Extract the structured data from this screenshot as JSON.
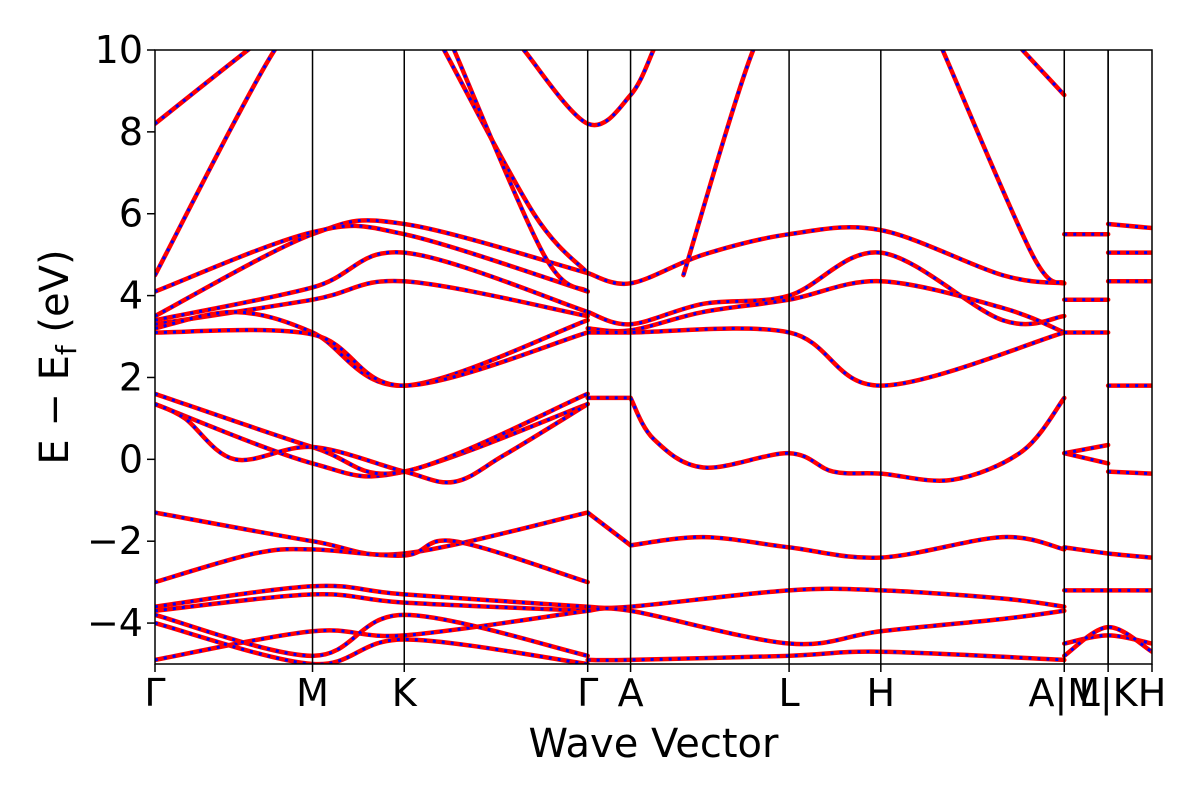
{
  "chart_data": {
    "type": "line",
    "xlabel": "Wave Vector",
    "ylabel_parts": [
      "E − E",
      "f",
      " (eV)"
    ],
    "ylim": [
      -5,
      10
    ],
    "yticks": [
      -4,
      -2,
      0,
      2,
      4,
      6,
      8,
      10
    ],
    "ytick_labels": [
      "−4",
      "−2",
      "0",
      "2",
      "4",
      "6",
      "8",
      "10"
    ],
    "kpath_labels": [
      "Γ",
      "M",
      "K",
      "Γ",
      "A",
      "L",
      "H",
      "A",
      "M",
      "L",
      "K",
      "H"
    ],
    "kpath_x": [
      0,
      0.158,
      0.25,
      0.434,
      0.477,
      0.636,
      0.728,
      0.912,
      0.912,
      0.956,
      0.956,
      1.0
    ],
    "kpath_tick_labels": [
      "Γ",
      "M",
      "K",
      "Γ",
      "A",
      "L",
      "H",
      "A|M",
      "L|K",
      "H"
    ],
    "kpath_tick_x": [
      0,
      0.158,
      0.25,
      0.434,
      0.477,
      0.636,
      0.728,
      0.912,
      0.956,
      1.0
    ],
    "colors": {
      "bands_primary": "#ff0000",
      "bands_overlay": "#0000ff",
      "axes": "#000000"
    },
    "series": [
      {
        "x": [
          0.0,
          0.158,
          0.25,
          0.434
        ],
        "y": [
          1.35,
          -0.1,
          -0.3,
          1.35
        ]
      },
      {
        "x": [
          0.0,
          0.158,
          0.25,
          0.434
        ],
        "y": [
          1.6,
          0.3,
          -0.3,
          1.6
        ]
      },
      {
        "x": [
          0.0,
          0.03,
          0.08,
          0.158,
          0.25,
          0.3,
          0.35,
          0.434
        ],
        "y": [
          1.35,
          1.0,
          0.0,
          0.3,
          -0.3,
          -0.55,
          0.1,
          1.35
        ]
      },
      {
        "x": [
          0.434,
          0.477
        ],
        "y": [
          1.5,
          1.5
        ]
      },
      {
        "x": [
          0.477,
          0.5,
          0.55,
          0.636,
          0.68,
          0.728,
          0.8,
          0.87,
          0.912
        ],
        "y": [
          1.5,
          0.5,
          -0.2,
          0.15,
          -0.3,
          -0.35,
          -0.5,
          0.2,
          1.5
        ]
      },
      {
        "x": [
          0.912,
          0.956
        ],
        "y": [
          0.15,
          -0.1
        ]
      },
      {
        "x": [
          0.912,
          0.956
        ],
        "y": [
          0.15,
          0.35
        ]
      },
      {
        "x": [
          0.956,
          1.0
        ],
        "y": [
          -0.3,
          -0.35
        ]
      },
      {
        "x": [
          0.0,
          0.158,
          0.25,
          0.434
        ],
        "y": [
          -1.3,
          -2.0,
          -2.3,
          -1.3
        ]
      },
      {
        "x": [
          0.0,
          0.1,
          0.158,
          0.25,
          0.3,
          0.434
        ],
        "y": [
          -3.0,
          -2.3,
          -2.2,
          -2.35,
          -2.0,
          -3.0
        ]
      },
      {
        "x": [
          0.434,
          0.477
        ],
        "y": [
          -1.3,
          -2.1
        ]
      },
      {
        "x": [
          0.477,
          0.55,
          0.636,
          0.728,
          0.85,
          0.912
        ],
        "y": [
          -2.1,
          -1.9,
          -2.15,
          -2.4,
          -1.9,
          -2.2
        ]
      },
      {
        "x": [
          0.912,
          0.956,
          1.0
        ],
        "y": [
          -2.15,
          -2.3,
          -2.4
        ]
      },
      {
        "x": [
          0.0,
          0.158,
          0.25,
          0.434
        ],
        "y": [
          3.5,
          5.5,
          5.75,
          4.55
        ]
      },
      {
        "x": [
          0.0,
          0.158,
          0.25,
          0.434
        ],
        "y": [
          4.1,
          5.55,
          5.5,
          4.1
        ]
      },
      {
        "x": [
          0.0,
          0.158,
          0.25,
          0.434
        ],
        "y": [
          3.4,
          4.2,
          5.05,
          3.6
        ]
      },
      {
        "x": [
          0.0,
          0.158,
          0.25,
          0.434
        ],
        "y": [
          3.3,
          3.9,
          4.35,
          3.5
        ]
      },
      {
        "x": [
          0.0,
          0.08,
          0.158,
          0.25,
          0.434
        ],
        "y": [
          3.2,
          3.6,
          3.1,
          1.8,
          3.4
        ]
      },
      {
        "x": [
          0.0,
          0.158,
          0.25,
          0.434
        ],
        "y": [
          3.1,
          3.05,
          1.8,
          3.1
        ]
      },
      {
        "x": [
          0.434,
          0.477,
          0.55,
          0.636,
          0.728,
          0.85,
          0.912
        ],
        "y": [
          4.55,
          4.3,
          5.0,
          5.5,
          5.6,
          4.5,
          4.3
        ]
      },
      {
        "x": [
          0.434,
          0.477,
          0.55,
          0.636,
          0.728,
          0.85,
          0.912
        ],
        "y": [
          3.6,
          3.3,
          3.8,
          4.0,
          5.05,
          3.4,
          3.5
        ]
      },
      {
        "x": [
          0.434,
          0.477,
          0.55,
          0.636,
          0.728,
          0.85,
          0.912
        ],
        "y": [
          3.2,
          3.15,
          3.6,
          3.9,
          4.35,
          3.7,
          3.1
        ]
      },
      {
        "x": [
          0.434,
          0.477,
          0.636,
          0.728,
          0.912
        ],
        "y": [
          3.1,
          3.1,
          3.1,
          1.8,
          3.1
        ]
      },
      {
        "x": [
          0.0,
          0.12,
          0.158
        ],
        "y": [
          4.5,
          10.0,
          10.5
        ]
      },
      {
        "x": [
          0.0,
          0.12,
          0.158
        ],
        "y": [
          8.2,
          10.5,
          11.0
        ]
      },
      {
        "x": [
          0.29,
          0.38,
          0.434
        ],
        "y": [
          10.0,
          6.0,
          4.55
        ]
      },
      {
        "x": [
          0.3,
          0.39,
          0.434
        ],
        "y": [
          10.0,
          5.0,
          4.1
        ]
      },
      {
        "x": [
          0.37,
          0.434,
          0.477,
          0.5
        ],
        "y": [
          10.0,
          8.2,
          8.9,
          10.0
        ]
      },
      {
        "x": [
          0.53,
          0.6,
          0.636
        ],
        "y": [
          4.5,
          10.0,
          11.0
        ]
      },
      {
        "x": [
          0.79,
          0.88,
          0.912
        ],
        "y": [
          10.0,
          5.0,
          4.3
        ]
      },
      {
        "x": [
          0.87,
          0.912
        ],
        "y": [
          10.0,
          8.9
        ]
      },
      {
        "x": [
          0.912,
          0.956
        ],
        "y": [
          5.5,
          5.5
        ]
      },
      {
        "x": [
          0.912,
          0.956
        ],
        "y": [
          3.9,
          3.9
        ]
      },
      {
        "x": [
          0.912,
          0.956
        ],
        "y": [
          3.1,
          3.1
        ]
      },
      {
        "x": [
          0.956,
          1.0
        ],
        "y": [
          5.75,
          5.65
        ]
      },
      {
        "x": [
          0.956,
          1.0
        ],
        "y": [
          5.05,
          5.05
        ]
      },
      {
        "x": [
          0.956,
          1.0
        ],
        "y": [
          4.35,
          4.35
        ]
      },
      {
        "x": [
          0.956,
          1.0
        ],
        "y": [
          1.8,
          1.8
        ]
      },
      {
        "x": [
          0.0,
          0.158,
          0.25,
          0.434
        ],
        "y": [
          -3.6,
          -3.1,
          -3.3,
          -3.6
        ]
      },
      {
        "x": [
          0.0,
          0.158,
          0.25,
          0.434
        ],
        "y": [
          -3.7,
          -3.3,
          -3.5,
          -3.7
        ]
      },
      {
        "x": [
          0.0,
          0.158,
          0.25,
          0.434
        ],
        "y": [
          -4.9,
          -4.2,
          -4.3,
          -3.7
        ]
      },
      {
        "x": [
          0.0,
          0.158,
          0.25,
          0.434
        ],
        "y": [
          -3.8,
          -4.8,
          -3.8,
          -4.8
        ]
      },
      {
        "x": [
          0.0,
          0.158,
          0.25,
          0.434
        ],
        "y": [
          -4.0,
          -5.0,
          -4.4,
          -5.0
        ]
      },
      {
        "x": [
          0.434,
          0.477,
          0.636,
          0.728,
          0.85,
          0.912
        ],
        "y": [
          -3.6,
          -3.6,
          -3.2,
          -3.2,
          -3.4,
          -3.6
        ]
      },
      {
        "x": [
          0.434,
          0.477,
          0.636,
          0.728,
          0.85,
          0.912
        ],
        "y": [
          -3.7,
          -3.7,
          -4.5,
          -4.2,
          -3.9,
          -3.7
        ]
      },
      {
        "x": [
          0.434,
          0.477,
          0.636,
          0.728,
          0.912
        ],
        "y": [
          -4.9,
          -4.9,
          -4.8,
          -4.7,
          -4.9
        ]
      },
      {
        "x": [
          0.912,
          0.956,
          1.0
        ],
        "y": [
          -3.2,
          -3.2,
          -3.2
        ]
      },
      {
        "x": [
          0.912,
          0.956,
          1.0
        ],
        "y": [
          -4.5,
          -4.3,
          -4.5
        ]
      },
      {
        "x": [
          0.912,
          0.956,
          1.0
        ],
        "y": [
          -4.8,
          -4.1,
          -4.7
        ]
      }
    ]
  }
}
